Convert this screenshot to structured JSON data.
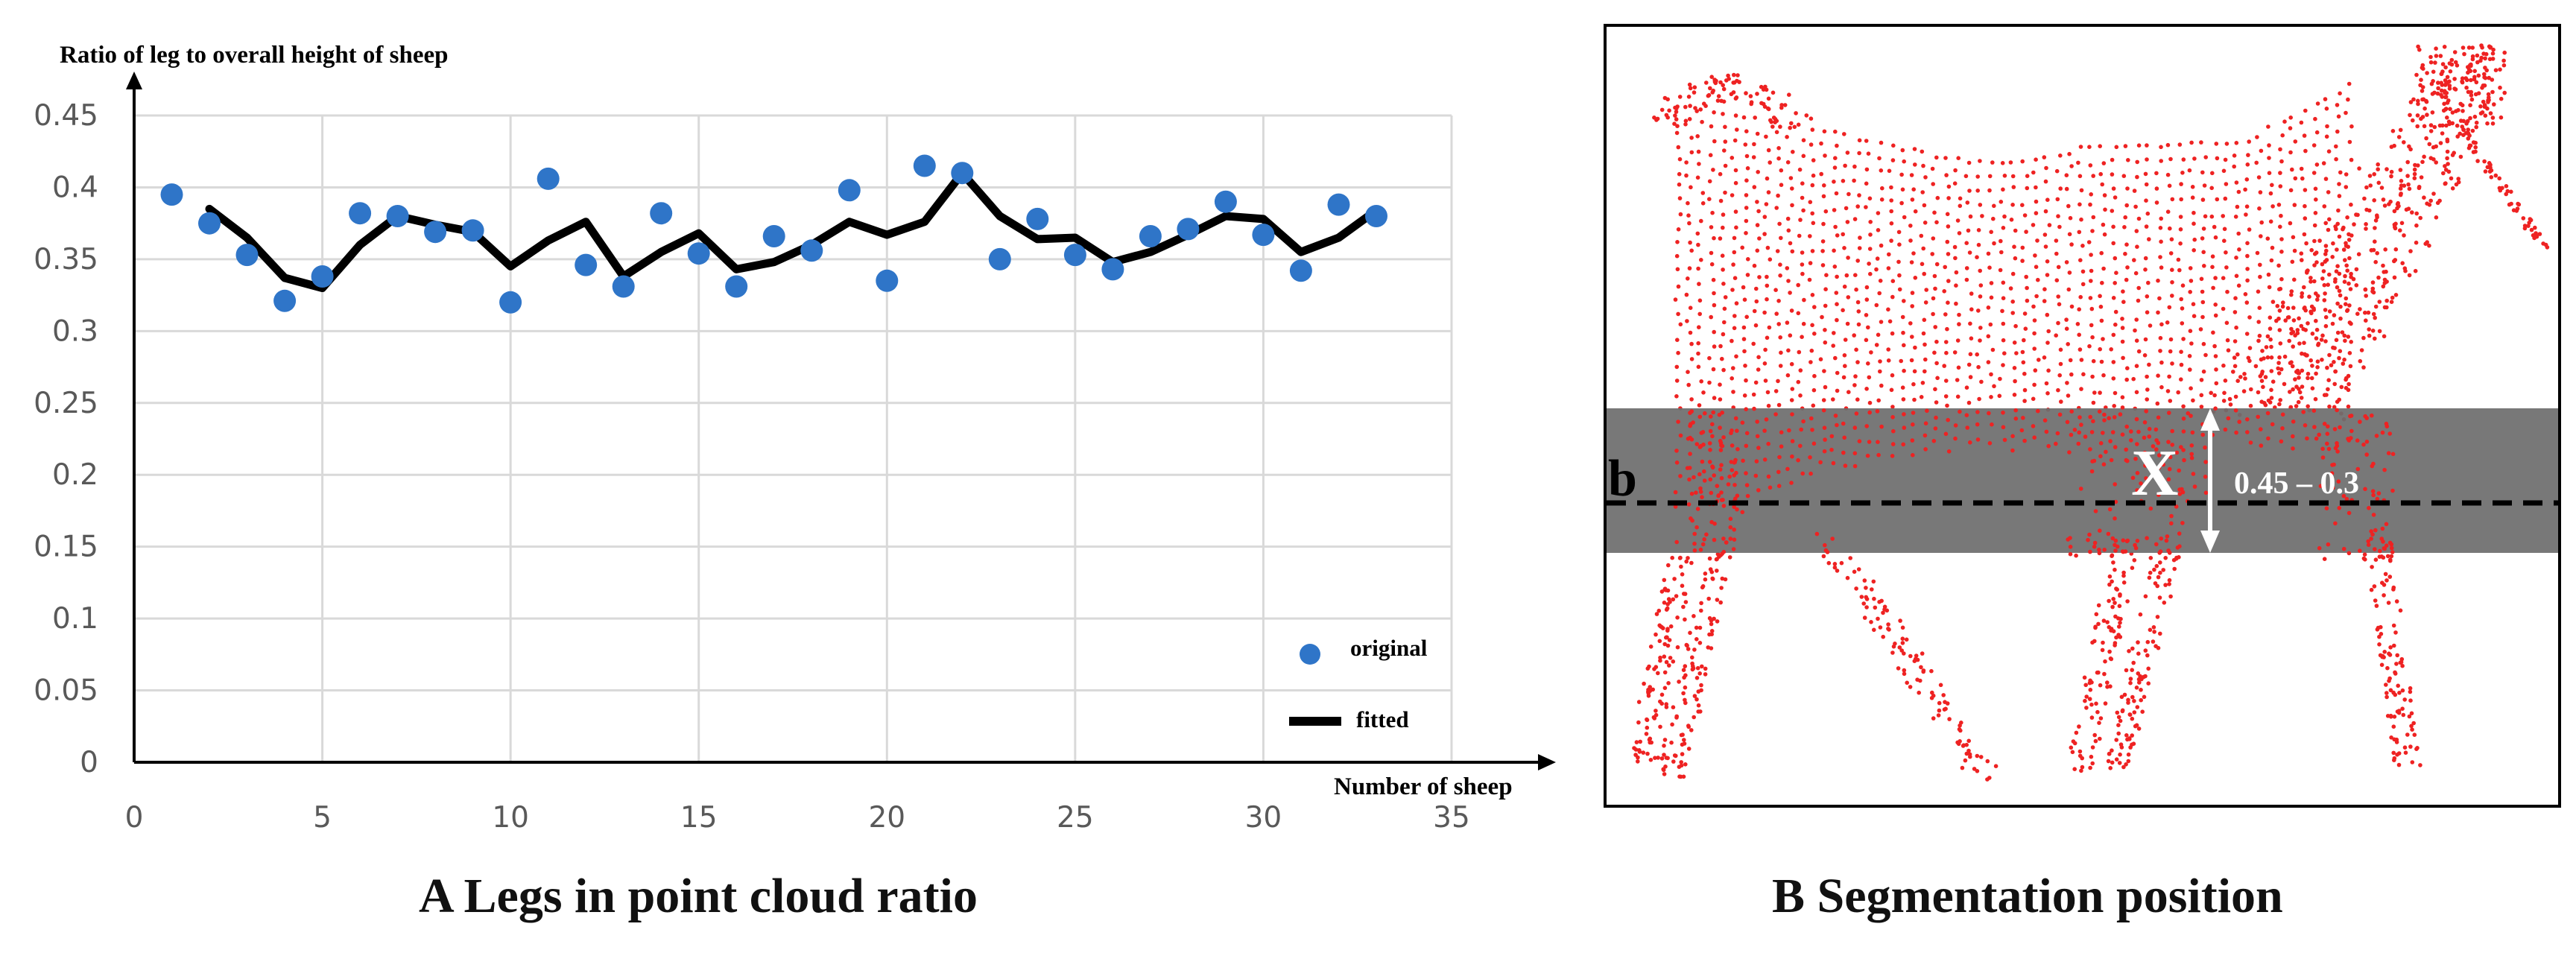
{
  "chart_data": [
    {
      "type": "line",
      "caption": "A Legs in point cloud ratio",
      "ylabel": "Ratio of leg to overall height of sheep",
      "xlabel": "Number of sheep",
      "xlim": [
        0,
        35
      ],
      "ylim": [
        0,
        0.45
      ],
      "x_ticks": [
        "0",
        "5",
        "10",
        "15",
        "20",
        "25",
        "30",
        "35"
      ],
      "y_ticks": [
        "0",
        "0.05",
        "0.1",
        "0.15",
        "0.2",
        "0.25",
        "0.3",
        "0.35",
        "0.4",
        "0.45"
      ],
      "grid": true,
      "legend_position": "bottom-right",
      "series": [
        {
          "name": "original",
          "kind": "scatter",
          "color": "#2f75c8",
          "x": [
            1,
            2,
            3,
            4,
            5,
            6,
            7,
            8,
            9,
            10,
            11,
            12,
            13,
            14,
            15,
            16,
            17,
            18,
            19,
            20,
            21,
            22,
            23,
            24,
            25,
            26,
            27,
            28,
            29,
            30,
            31,
            32,
            33
          ],
          "y": [
            0.395,
            0.375,
            0.353,
            0.321,
            0.338,
            0.382,
            0.38,
            0.369,
            0.37,
            0.32,
            0.406,
            0.346,
            0.331,
            0.382,
            0.354,
            0.331,
            0.366,
            0.356,
            0.398,
            0.335,
            0.415,
            0.41,
            0.35,
            0.378,
            0.353,
            0.343,
            0.366,
            0.371,
            0.39,
            0.367,
            0.342,
            0.388,
            0.38
          ]
        },
        {
          "name": "fitted",
          "kind": "line",
          "color": "#000000",
          "x": [
            2,
            3,
            4,
            5,
            6,
            7,
            8,
            9,
            10,
            11,
            12,
            13,
            14,
            15,
            16,
            17,
            18,
            19,
            20,
            21,
            22,
            23,
            24,
            25,
            26,
            27,
            28,
            29,
            30,
            31,
            32,
            33
          ],
          "y": [
            0.385,
            0.365,
            0.337,
            0.33,
            0.36,
            0.38,
            0.374,
            0.369,
            0.345,
            0.363,
            0.376,
            0.338,
            0.355,
            0.368,
            0.343,
            0.348,
            0.36,
            0.376,
            0.367,
            0.376,
            0.41,
            0.38,
            0.364,
            0.365,
            0.348,
            0.355,
            0.367,
            0.38,
            0.378,
            0.355,
            0.365,
            0.384
          ]
        }
      ]
    },
    {
      "type": "diagram",
      "caption": "B Segmentation position",
      "line_label": "b",
      "range_symbol": "X",
      "range_label": "0.45 – 0.3",
      "point_color": "#ee2222",
      "band_color": "#6e6e6e"
    }
  ]
}
